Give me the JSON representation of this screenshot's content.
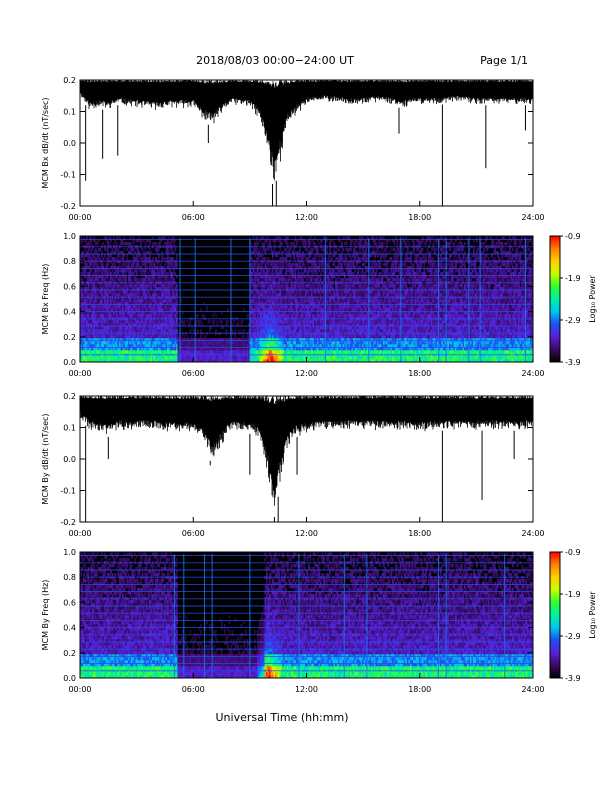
{
  "header": {
    "title": "2018/08/03  00:00−24:00 UT",
    "page": "Page 1/1"
  },
  "footer": {
    "xlabel": "Universal Time (hh:mm)"
  },
  "chart_data": [
    {
      "type": "line",
      "ylabel": "MCM Bx dB/dt (nT/sec)",
      "xlim": [
        0,
        24
      ],
      "ylim": [
        -0.2,
        0.2
      ],
      "xticks": [
        "00:00",
        "06:00",
        "12:00",
        "18:00",
        "24:00"
      ],
      "yticks": [
        "-0.2",
        "-0.1",
        "0.0",
        "0.1",
        "0.2"
      ],
      "envelope": {
        "x": [
          0,
          0.5,
          1,
          1.5,
          2,
          3,
          4,
          5,
          6,
          6.5,
          7,
          8,
          9,
          9.5,
          10,
          10.25,
          10.5,
          11,
          11.5,
          12,
          13,
          14,
          15,
          16,
          17,
          18,
          19,
          20,
          21,
          22,
          23,
          24
        ],
        "lower": [
          0.15,
          0.1,
          0.11,
          0.1,
          0.12,
          0.11,
          0.1,
          0.11,
          0.11,
          0.07,
          0.05,
          0.12,
          0.11,
          0.07,
          -0.05,
          -0.15,
          -0.1,
          0.05,
          0.09,
          0.12,
          0.13,
          0.12,
          0.12,
          0.13,
          0.11,
          0.12,
          0.12,
          0.13,
          0.12,
          0.12,
          0.12,
          0.12
        ],
        "upper": [
          0.2,
          0.2,
          0.2,
          0.2,
          0.2,
          0.2,
          0.2,
          0.2,
          0.2,
          0.2,
          0.2,
          0.2,
          0.2,
          0.2,
          0.2,
          0.2,
          0.2,
          0.2,
          0.2,
          0.2,
          0.2,
          0.2,
          0.2,
          0.2,
          0.2,
          0.2,
          0.2,
          0.2,
          0.2,
          0.2,
          0.2,
          0.2
        ]
      },
      "spikes": [
        {
          "x": 0.3,
          "y": -0.12
        },
        {
          "x": 1.2,
          "y": -0.05
        },
        {
          "x": 2.0,
          "y": -0.04
        },
        {
          "x": 6.8,
          "y": 0.0
        },
        {
          "x": 10.2,
          "y": -0.2
        },
        {
          "x": 10.4,
          "y": -0.2
        },
        {
          "x": 16.9,
          "y": 0.03
        },
        {
          "x": 19.2,
          "y": -0.2
        },
        {
          "x": 21.5,
          "y": -0.08
        },
        {
          "x": 23.6,
          "y": 0.04
        }
      ]
    },
    {
      "type": "heatmap",
      "ylabel": "MCM Bx Freq (Hz)",
      "colorbar_label": "Log₁₀ Power",
      "colorbar_ticks": [
        "-0.9",
        "-1.9",
        "-2.9",
        "-3.9"
      ],
      "colorscale": [
        "#000000",
        "#3a0a60",
        "#5a1fd8",
        "#1f4ff0",
        "#00c6f0",
        "#00f0a0",
        "#30ff30",
        "#c8ff00",
        "#ffd000",
        "#ff8000",
        "#ff0000"
      ],
      "xlim": [
        0,
        24
      ],
      "ylim": [
        0,
        1.0
      ],
      "xticks": [
        "00:00",
        "06:00",
        "12:00",
        "18:00",
        "24:00"
      ],
      "yticks": [
        "0.0",
        "0.2",
        "0.4",
        "0.6",
        "0.8",
        "1.0"
      ],
      "quiet_intervals": [
        [
          5.2,
          9.0
        ]
      ],
      "burst_time": 10.1,
      "vertical_lines": [
        5.3,
        6.1,
        8.0,
        9.0,
        13.0,
        15.3,
        17.0,
        19.0,
        19.4,
        20.6,
        21.2,
        23.6
      ]
    },
    {
      "type": "line",
      "ylabel": "MCM By dB/dt (nT/sec)",
      "xlim": [
        0,
        24
      ],
      "ylim": [
        -0.2,
        0.2
      ],
      "xticks": [
        "00:00",
        "06:00",
        "12:00",
        "18:00",
        "24:00"
      ],
      "yticks": [
        "-0.2",
        "-0.1",
        "0.0",
        "0.1",
        "0.2"
      ],
      "envelope": {
        "x": [
          0,
          0.5,
          1,
          1.5,
          2,
          3,
          4,
          5,
          6,
          6.5,
          7,
          8,
          9,
          9.5,
          10,
          10.25,
          10.5,
          11,
          11.5,
          12,
          13,
          14,
          15,
          16,
          17,
          18,
          19,
          20,
          21,
          22,
          23,
          24
        ],
        "lower": [
          0.13,
          0.09,
          0.08,
          0.07,
          0.09,
          0.09,
          0.09,
          0.08,
          0.08,
          0.05,
          -0.02,
          0.09,
          0.08,
          0.06,
          -0.08,
          -0.2,
          -0.12,
          0.03,
          0.07,
          0.08,
          0.09,
          0.09,
          0.09,
          0.09,
          0.09,
          0.08,
          0.09,
          0.09,
          0.09,
          0.09,
          0.09,
          0.09
        ],
        "upper": [
          0.2,
          0.2,
          0.2,
          0.2,
          0.2,
          0.2,
          0.2,
          0.2,
          0.2,
          0.2,
          0.2,
          0.2,
          0.2,
          0.2,
          0.2,
          0.2,
          0.2,
          0.2,
          0.2,
          0.2,
          0.2,
          0.2,
          0.2,
          0.2,
          0.2,
          0.2,
          0.2,
          0.2,
          0.2,
          0.2,
          0.2,
          0.2
        ]
      },
      "spikes": [
        {
          "x": 0.3,
          "y": -0.2
        },
        {
          "x": 1.5,
          "y": 0.0
        },
        {
          "x": 6.9,
          "y": -0.02
        },
        {
          "x": 9.0,
          "y": -0.05
        },
        {
          "x": 10.3,
          "y": -0.2
        },
        {
          "x": 10.5,
          "y": -0.2
        },
        {
          "x": 11.5,
          "y": -0.05
        },
        {
          "x": 19.2,
          "y": -0.2
        },
        {
          "x": 21.3,
          "y": -0.13
        },
        {
          "x": 23.0,
          "y": 0.0
        }
      ]
    },
    {
      "type": "heatmap",
      "ylabel": "MCM By Freq (Hz)",
      "colorbar_label": "Log₁₀ Power",
      "colorbar_ticks": [
        "-0.9",
        "-1.9",
        "-2.9",
        "-3.9"
      ],
      "colorscale": [
        "#000000",
        "#3a0a60",
        "#5a1fd8",
        "#1f4ff0",
        "#00c6f0",
        "#00f0a0",
        "#30ff30",
        "#c8ff00",
        "#ffd000",
        "#ff8000",
        "#ff0000"
      ],
      "xlim": [
        0,
        24
      ],
      "ylim": [
        0,
        1.0
      ],
      "xticks": [
        "00:00",
        "06:00",
        "12:00",
        "18:00",
        "24:00"
      ],
      "yticks": [
        "0.0",
        "0.2",
        "0.4",
        "0.6",
        "0.8",
        "1.0"
      ],
      "quiet_intervals": [
        [
          5.2,
          9.8
        ]
      ],
      "burst_time": 10.0,
      "vertical_lines": [
        5.0,
        5.5,
        6.6,
        7.0,
        9.0,
        11.6,
        14.0,
        15.2,
        19.0,
        19.4,
        22.5
      ]
    }
  ]
}
